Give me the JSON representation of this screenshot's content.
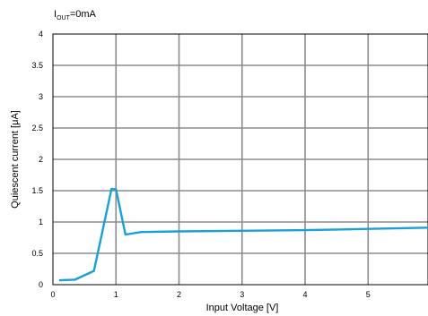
{
  "condition": {
    "symbol": "I",
    "subscript": "OUT",
    "value": "=0mA"
  },
  "chart_data": {
    "type": "line",
    "title": "",
    "xlabel": "Input Voltage [V]",
    "ylabel": "Quiescent current [μA]",
    "xlim": [
      0,
      5.95
    ],
    "ylim": [
      0,
      4
    ],
    "x_ticks": [
      "0",
      "1",
      "2",
      "3",
      "4",
      "5"
    ],
    "y_ticks": [
      "0",
      "0.5",
      "1",
      "1.5",
      "2",
      "2.5",
      "3",
      "3.5",
      "4"
    ],
    "grid": true,
    "series": [
      {
        "color": "#1aa0d8",
        "x": [
          0.1,
          0.35,
          0.65,
          0.93,
          1.0,
          1.15,
          1.4,
          2.0,
          3.0,
          4.0,
          5.0,
          5.95
        ],
        "y": [
          0.07,
          0.08,
          0.22,
          1.53,
          1.52,
          0.8,
          0.84,
          0.85,
          0.86,
          0.87,
          0.89,
          0.91
        ]
      }
    ]
  }
}
